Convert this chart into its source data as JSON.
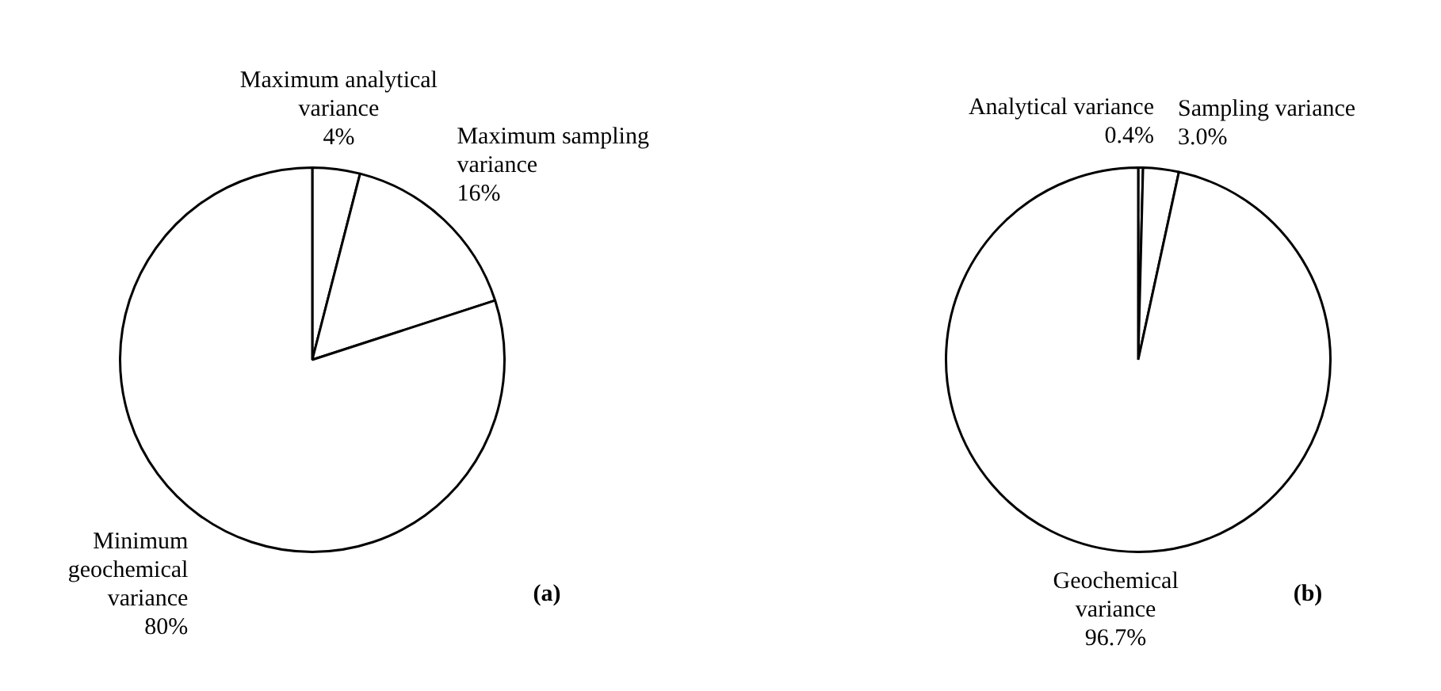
{
  "chart_data": [
    {
      "type": "pie",
      "categories": [
        "Maximum analytical variance",
        "Maximum sampling variance",
        "Minimum geochemical variance"
      ],
      "values": [
        4,
        16,
        80
      ],
      "value_labels": [
        "4%",
        "16%",
        "80%"
      ],
      "colors": [
        "#ffffff",
        "#ffffff",
        "#ffffff"
      ],
      "annotations": [
        "(a)"
      ],
      "legend": false
    },
    {
      "type": "pie",
      "categories": [
        "Analytical variance",
        "Sampling variance",
        "Geochemical variance"
      ],
      "values": [
        0.4,
        3.0,
        96.7
      ],
      "value_labels": [
        "0.4%",
        "3.0%",
        "96.7%"
      ],
      "colors": [
        "#ffffff",
        "#ffffff",
        "#ffffff"
      ],
      "annotations": [
        "(b)"
      ],
      "legend": false
    }
  ]
}
